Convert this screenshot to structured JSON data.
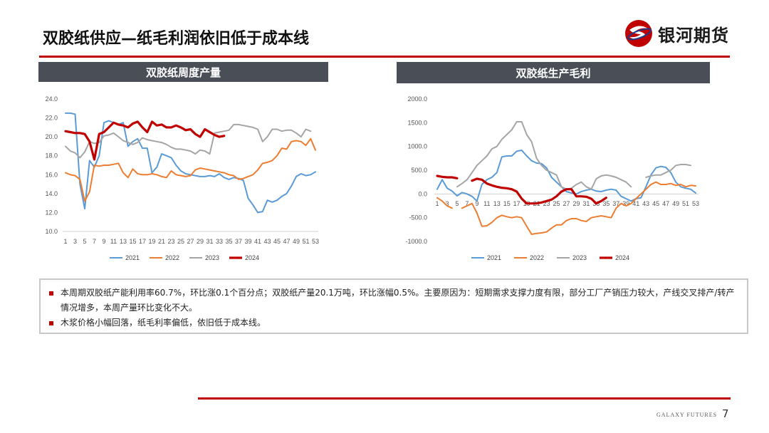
{
  "title": "双胶纸供应—纸毛利润依旧低于成本线",
  "logo": {
    "text": "银河期货",
    "icon": "galaxy-logo-icon"
  },
  "footer": {
    "brand": "GALAXY FUTURES",
    "page": "7"
  },
  "colors": {
    "accent": "#c00000",
    "s2021": "#5b9bd5",
    "s2022": "#ed7d31",
    "s2023": "#a5a5a5",
    "s2024": "#c00000"
  },
  "notes": [
    "本周期双胶纸产能利用率60.7%，环比涨0.1个百分点；双胶纸产量20.1万吨，环比涨幅0.5%。主要原因为：短期需求支撑力度有限，部分工厂产销压力较大，产线交叉排产/转产情况增多，本周产量环比变化不大。",
    "木浆价格小幅回落，纸毛利率偏低，依旧低于成本线。"
  ],
  "chart_data": [
    {
      "type": "line",
      "title": "双胶纸周度产量",
      "xlabel": "",
      "ylabel": "",
      "ylim": [
        10,
        24
      ],
      "yticks": [
        "24.0",
        "22.0",
        "20.0",
        "18.0",
        "16.0",
        "14.0",
        "12.0",
        "10.0"
      ],
      "xticks": [
        "1",
        "3",
        "5",
        "7",
        "9",
        "11",
        "13",
        "15",
        "17",
        "19",
        "21",
        "23",
        "25",
        "27",
        "29",
        "31",
        "33",
        "35",
        "37",
        "39",
        "41",
        "43",
        "45",
        "47",
        "49",
        "51",
        "53"
      ],
      "grid": false,
      "legend": "bottom",
      "series": [
        {
          "name": "2021",
          "color": "#5b9bd5",
          "x": [
            1,
            2,
            3,
            4,
            5,
            6,
            7,
            8,
            9,
            10,
            11,
            12,
            13,
            14,
            15,
            16,
            17,
            18,
            19,
            20,
            21,
            22,
            23,
            24,
            25,
            26,
            27,
            28,
            29,
            30,
            31,
            32,
            33,
            34,
            35,
            36,
            37,
            38,
            39,
            40,
            41,
            42,
            43,
            44,
            45,
            46,
            47,
            48,
            49,
            50,
            51,
            52,
            53
          ],
          "values": [
            22.5,
            22.5,
            22.4,
            15.0,
            12.4,
            17.5,
            16.8,
            18.0,
            21.5,
            21.7,
            21.5,
            21.3,
            21.5,
            19.0,
            19.5,
            19.8,
            18.8,
            18.8,
            16.2,
            16.8,
            18.2,
            18.0,
            17.8,
            17.0,
            16.4,
            16.1,
            16.0,
            15.9,
            15.8,
            15.8,
            15.9,
            15.8,
            16.1,
            15.7,
            15.5,
            15.7,
            15.6,
            15.4,
            13.5,
            12.8,
            12.0,
            12.1,
            13.3,
            13.1,
            13.3,
            13.7,
            14.0,
            14.8,
            15.8,
            16.1,
            15.9,
            16.0,
            16.3
          ]
        },
        {
          "name": "2022",
          "color": "#ed7d31",
          "x": [
            1,
            2,
            3,
            4,
            5,
            6,
            7,
            8,
            9,
            10,
            11,
            12,
            13,
            14,
            15,
            16,
            17,
            18,
            19,
            20,
            21,
            22,
            23,
            24,
            25,
            26,
            27,
            28,
            29,
            30,
            31,
            32,
            33,
            34,
            35,
            36,
            37,
            38,
            39,
            40,
            41,
            42,
            43,
            44,
            45,
            46,
            47,
            48,
            49,
            50,
            51,
            52,
            53
          ],
          "values": [
            16.2,
            16.0,
            15.9,
            15.5,
            13.2,
            14.2,
            17.0,
            16.9,
            17.0,
            17.0,
            17.1,
            17.2,
            16.2,
            15.7,
            16.6,
            16.1,
            16.0,
            16.0,
            16.1,
            16.0,
            15.8,
            15.7,
            16.4,
            16.0,
            15.9,
            15.8,
            15.9,
            16.5,
            16.7,
            16.6,
            16.5,
            16.4,
            16.3,
            16.2,
            16.0,
            15.9,
            15.5,
            15.6,
            15.8,
            16.0,
            16.5,
            17.2,
            17.3,
            17.5,
            18.0,
            18.8,
            18.7,
            19.5,
            19.6,
            19.5,
            19.1,
            19.8,
            18.6
          ]
        },
        {
          "name": "2023",
          "color": "#a5a5a5",
          "x": [
            1,
            2,
            3,
            4,
            5,
            6,
            7,
            8,
            9,
            10,
            11,
            12,
            13,
            14,
            15,
            16,
            17,
            18,
            19,
            20,
            21,
            22,
            23,
            24,
            25,
            26,
            27,
            28,
            29,
            30,
            31,
            32,
            33,
            34,
            35,
            36,
            37,
            38,
            39,
            40,
            41,
            42,
            43,
            44,
            45,
            46,
            47,
            48,
            49,
            50,
            51,
            52,
            53
          ],
          "values": [
            19.0,
            18.5,
            18.3,
            17.8,
            18.4,
            19.5,
            19.3,
            19.4,
            20.1,
            20.2,
            20.4,
            20.0,
            19.6,
            19.4,
            19.2,
            19.4,
            19.9,
            19.7,
            19.6,
            19.5,
            19.4,
            19.2,
            18.9,
            18.7,
            18.7,
            18.6,
            18.5,
            18.2,
            18.6,
            18.5,
            18.2,
            20.4,
            20.5,
            20.6,
            20.7,
            21.3,
            21.3,
            21.2,
            21.1,
            21.0,
            20.8,
            19.5,
            20.0,
            20.8,
            20.8,
            20.6,
            20.7,
            20.7,
            20.4,
            20.0,
            20.8,
            20.6,
            null
          ]
        },
        {
          "name": "2024",
          "color": "#c00000",
          "x": [
            1,
            2,
            3,
            4,
            5,
            6,
            7,
            8,
            9,
            10,
            11,
            12,
            13,
            14,
            15,
            16,
            17,
            18,
            19,
            20,
            21,
            22,
            23,
            24,
            25,
            26,
            27,
            28,
            29,
            30,
            31,
            32,
            33,
            34
          ],
          "values": [
            20.6,
            20.5,
            20.4,
            20.4,
            20.3,
            19.5,
            17.6,
            20.3,
            20.5,
            21.0,
            21.5,
            21.3,
            21.2,
            21.0,
            21.4,
            21.6,
            21.0,
            20.5,
            21.6,
            21.2,
            21.3,
            21.0,
            21.0,
            21.2,
            21.0,
            20.7,
            20.8,
            20.3,
            20.0,
            20.8,
            20.5,
            20.2,
            20.0,
            20.1
          ]
        }
      ]
    },
    {
      "type": "line",
      "title": "双胶纸生产毛利",
      "xlabel": "",
      "ylabel": "",
      "ylim": [
        -1000,
        2000
      ],
      "yticks": [
        "2000.0",
        "1500.0",
        "1000.0",
        "500.0",
        "0.0",
        "-500.0",
        "-1000.0"
      ],
      "xticks": [
        "1",
        "3",
        "5",
        "7",
        "9",
        "11",
        "13",
        "15",
        "17",
        "19",
        "21",
        "23",
        "25",
        "27",
        "29",
        "31",
        "33",
        "35",
        "37",
        "39",
        "41",
        "43",
        "45",
        "47",
        "49",
        "51",
        "53"
      ],
      "grid": false,
      "legend": "bottom",
      "series": [
        {
          "name": "2021",
          "color": "#5b9bd5",
          "x": [
            1,
            2,
            3,
            4,
            5,
            6,
            7,
            8,
            9,
            10,
            11,
            12,
            13,
            14,
            15,
            16,
            17,
            18,
            19,
            20,
            21,
            22,
            23,
            24,
            25,
            26,
            27,
            28,
            29,
            30,
            31,
            32,
            33,
            34,
            35,
            36,
            37,
            38,
            39,
            40,
            41,
            42,
            43,
            44,
            45,
            46,
            47,
            48,
            49,
            50,
            51,
            52,
            53
          ],
          "values": [
            100,
            300,
            120,
            60,
            -40,
            30,
            0,
            -50,
            -150,
            200,
            300,
            350,
            450,
            780,
            800,
            800,
            900,
            920,
            800,
            700,
            650,
            640,
            550,
            350,
            250,
            150,
            50,
            20,
            0,
            50,
            80,
            100,
            60,
            50,
            80,
            100,
            80,
            -50,
            -100,
            -150,
            -100,
            -80,
            150,
            400,
            550,
            580,
            560,
            450,
            250,
            150,
            120,
            100,
            20
          ]
        },
        {
          "name": "2022",
          "color": "#ed7d31",
          "x": [
            1,
            2,
            3,
            4,
            5,
            6,
            7,
            8,
            9,
            10,
            11,
            12,
            13,
            14,
            15,
            16,
            17,
            18,
            19,
            20,
            21,
            22,
            23,
            24,
            25,
            26,
            27,
            28,
            29,
            30,
            31,
            32,
            33,
            34,
            35,
            36,
            37,
            38,
            39,
            40,
            41,
            42,
            43,
            44,
            45,
            46,
            47,
            48,
            49,
            50,
            51,
            52,
            53
          ],
          "values": [
            -80,
            -150,
            -250,
            -300,
            null,
            -300,
            -250,
            -200,
            -400,
            -680,
            -670,
            -600,
            -500,
            -450,
            -480,
            -500,
            -480,
            -500,
            -680,
            -850,
            -830,
            -820,
            -800,
            -720,
            -650,
            -650,
            -560,
            -520,
            -520,
            -560,
            -580,
            -500,
            -480,
            -460,
            -480,
            -500,
            -300,
            -200,
            -250,
            -200,
            -100,
            0,
            100,
            200,
            250,
            200,
            200,
            220,
            180,
            200,
            150,
            180,
            170
          ]
        },
        {
          "name": "2023",
          "color": "#a5a5a5",
          "x": [
            1,
            2,
            3,
            4,
            5,
            6,
            7,
            8,
            9,
            10,
            11,
            12,
            13,
            14,
            15,
            16,
            17,
            18,
            19,
            20,
            21,
            22,
            23,
            24,
            25,
            26,
            27,
            28,
            29,
            30,
            31,
            32,
            33,
            34,
            35,
            36,
            37,
            38,
            39,
            40,
            41,
            42,
            43,
            44,
            45,
            46,
            47,
            48,
            49,
            50,
            51,
            52,
            53
          ],
          "values": [
            null,
            null,
            null,
            null,
            150,
            220,
            300,
            450,
            600,
            700,
            800,
            950,
            1000,
            1150,
            1250,
            1350,
            1520,
            1520,
            1250,
            1100,
            750,
            600,
            500,
            450,
            400,
            150,
            100,
            120,
            200,
            250,
            150,
            100,
            320,
            380,
            400,
            380,
            350,
            300,
            250,
            150,
            null,
            null,
            350,
            380,
            400,
            400,
            450,
            500,
            600,
            620,
            620,
            600,
            null
          ]
        },
        {
          "name": "2024",
          "color": "#c00000",
          "x": [
            1,
            2,
            3,
            4,
            5,
            6,
            7,
            8,
            9,
            10,
            11,
            12,
            13,
            14,
            15,
            16,
            17,
            18,
            19,
            20,
            21,
            22,
            23,
            24,
            25,
            26,
            27,
            28,
            29,
            30,
            31,
            32,
            33,
            34,
            35
          ],
          "values": [
            380,
            360,
            350,
            350,
            330,
            null,
            null,
            280,
            320,
            300,
            220,
            180,
            150,
            130,
            120,
            100,
            50,
            -100,
            -200,
            -200,
            -200,
            -180,
            -150,
            -120,
            -50,
            50,
            100,
            100,
            -50,
            -50,
            -60,
            -100,
            -200,
            -150,
            -80
          ]
        }
      ]
    }
  ]
}
